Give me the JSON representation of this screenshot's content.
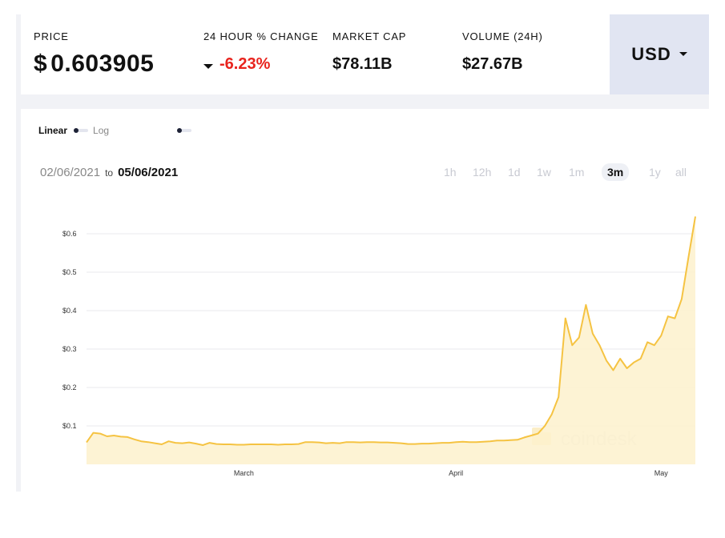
{
  "stats": {
    "price_label": "PRICE",
    "price_symbol": "$",
    "price_value": "0.603905",
    "change_label": "24 HOUR % CHANGE",
    "change_value": "-6.23%",
    "market_cap_label": "MARKET CAP",
    "market_cap_value": "$78.11B",
    "volume_label": "VOLUME (24H)",
    "volume_value": "$27.67B"
  },
  "currency": {
    "label": "USD"
  },
  "scale": {
    "linear_label": "Linear",
    "log_label": "Log"
  },
  "date_range": {
    "start": "02/06/2021",
    "sep": "to",
    "end": "05/06/2021"
  },
  "timeframes": [
    "1h",
    "12h",
    "1d",
    "1w",
    "1m",
    "3m",
    "1y",
    "all"
  ],
  "active_timeframe": "3m",
  "watermark": "coindesk",
  "colors": {
    "line": "#f5c342",
    "fill": "#fdf3d4",
    "negative": "#e8231d",
    "usd_bg": "#e1e5f2"
  },
  "chart_data": {
    "type": "area",
    "title": "",
    "xlabel": "",
    "ylabel": "",
    "ylim": [
      0,
      0.65
    ],
    "yticks": [
      0.1,
      0.2,
      0.3,
      0.4,
      0.5,
      0.6
    ],
    "ytick_labels": [
      "$0.1",
      "$0.2",
      "$0.3",
      "$0.4",
      "$0.5",
      "$0.6"
    ],
    "xticks": [
      {
        "label": "March",
        "at": "2021-03-01"
      },
      {
        "label": "April",
        "at": "2021-04-01"
      },
      {
        "label": "May",
        "at": "2021-05-01"
      }
    ],
    "grid": true,
    "x_start": "2021-02-06",
    "x_end": "2021-05-06",
    "series": [
      {
        "values": [
          [
            "2021-02-06",
            0.057
          ],
          [
            "2021-02-07",
            0.082
          ],
          [
            "2021-02-08",
            0.08
          ],
          [
            "2021-02-09",
            0.073
          ],
          [
            "2021-02-10",
            0.075
          ],
          [
            "2021-02-11",
            0.072
          ],
          [
            "2021-02-12",
            0.071
          ],
          [
            "2021-02-13",
            0.065
          ],
          [
            "2021-02-14",
            0.06
          ],
          [
            "2021-02-15",
            0.058
          ],
          [
            "2021-02-16",
            0.055
          ],
          [
            "2021-02-17",
            0.052
          ],
          [
            "2021-02-18",
            0.06
          ],
          [
            "2021-02-19",
            0.056
          ],
          [
            "2021-02-20",
            0.055
          ],
          [
            "2021-02-21",
            0.057
          ],
          [
            "2021-02-22",
            0.054
          ],
          [
            "2021-02-23",
            0.05
          ],
          [
            "2021-02-24",
            0.056
          ],
          [
            "2021-02-25",
            0.053
          ],
          [
            "2021-02-26",
            0.052
          ],
          [
            "2021-02-27",
            0.052
          ],
          [
            "2021-02-28",
            0.051
          ],
          [
            "2021-03-01",
            0.051
          ],
          [
            "2021-03-02",
            0.052
          ],
          [
            "2021-03-03",
            0.052
          ],
          [
            "2021-03-04",
            0.052
          ],
          [
            "2021-03-05",
            0.052
          ],
          [
            "2021-03-06",
            0.051
          ],
          [
            "2021-03-07",
            0.052
          ],
          [
            "2021-03-08",
            0.052
          ],
          [
            "2021-03-09",
            0.053
          ],
          [
            "2021-03-10",
            0.058
          ],
          [
            "2021-03-11",
            0.058
          ],
          [
            "2021-03-12",
            0.057
          ],
          [
            "2021-03-13",
            0.055
          ],
          [
            "2021-03-14",
            0.056
          ],
          [
            "2021-03-15",
            0.055
          ],
          [
            "2021-03-16",
            0.058
          ],
          [
            "2021-03-17",
            0.058
          ],
          [
            "2021-03-18",
            0.057
          ],
          [
            "2021-03-19",
            0.058
          ],
          [
            "2021-03-20",
            0.058
          ],
          [
            "2021-03-21",
            0.057
          ],
          [
            "2021-03-22",
            0.057
          ],
          [
            "2021-03-23",
            0.056
          ],
          [
            "2021-03-24",
            0.055
          ],
          [
            "2021-03-25",
            0.053
          ],
          [
            "2021-03-26",
            0.053
          ],
          [
            "2021-03-27",
            0.054
          ],
          [
            "2021-03-28",
            0.054
          ],
          [
            "2021-03-29",
            0.055
          ],
          [
            "2021-03-30",
            0.056
          ],
          [
            "2021-03-31",
            0.056
          ],
          [
            "2021-04-01",
            0.058
          ],
          [
            "2021-04-02",
            0.059
          ],
          [
            "2021-04-03",
            0.058
          ],
          [
            "2021-04-04",
            0.058
          ],
          [
            "2021-04-05",
            0.059
          ],
          [
            "2021-04-06",
            0.06
          ],
          [
            "2021-04-07",
            0.062
          ],
          [
            "2021-04-08",
            0.062
          ],
          [
            "2021-04-09",
            0.063
          ],
          [
            "2021-04-10",
            0.064
          ],
          [
            "2021-04-11",
            0.07
          ],
          [
            "2021-04-12",
            0.075
          ],
          [
            "2021-04-13",
            0.08
          ],
          [
            "2021-04-14",
            0.1
          ],
          [
            "2021-04-15",
            0.13
          ],
          [
            "2021-04-16",
            0.175
          ],
          [
            "2021-04-17",
            0.38
          ],
          [
            "2021-04-18",
            0.31
          ],
          [
            "2021-04-19",
            0.33
          ],
          [
            "2021-04-20",
            0.415
          ],
          [
            "2021-04-21",
            0.34
          ],
          [
            "2021-04-22",
            0.31
          ],
          [
            "2021-04-23",
            0.27
          ],
          [
            "2021-04-24",
            0.245
          ],
          [
            "2021-04-25",
            0.275
          ],
          [
            "2021-04-26",
            0.25
          ],
          [
            "2021-04-27",
            0.265
          ],
          [
            "2021-04-28",
            0.275
          ],
          [
            "2021-04-29",
            0.318
          ],
          [
            "2021-04-30",
            0.31
          ],
          [
            "2021-05-01",
            0.335
          ],
          [
            "2021-05-02",
            0.385
          ],
          [
            "2021-05-03",
            0.38
          ],
          [
            "2021-05-04",
            0.43
          ],
          [
            "2021-05-05",
            0.54
          ],
          [
            "2021-05-06",
            0.645
          ]
        ]
      }
    ]
  }
}
